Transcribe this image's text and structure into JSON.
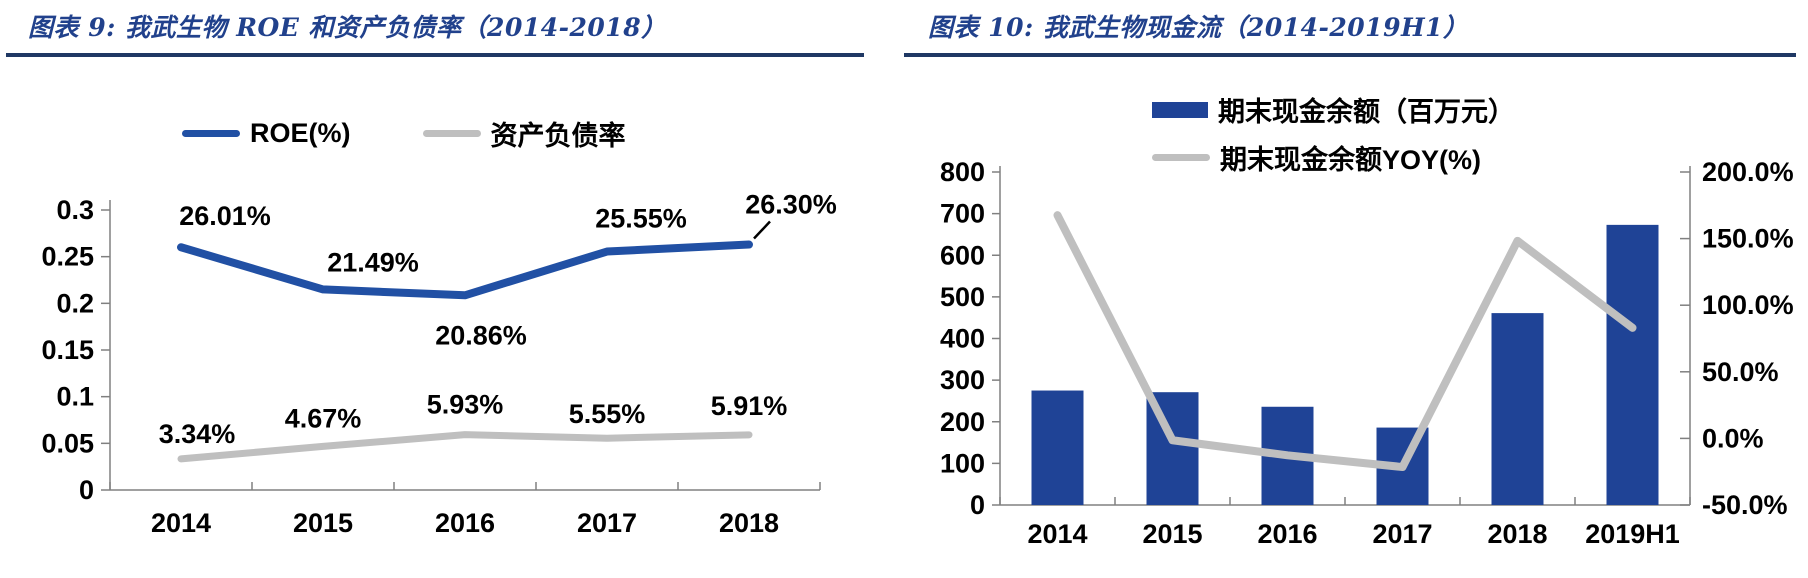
{
  "colors": {
    "title_blue": "#21418C",
    "rule_blue": "#1F3864",
    "bar_blue": "#1F4396",
    "roe_line_blue": "#2150A4",
    "series_gray": "#BFBFBF",
    "axis_gray": "#808080",
    "label_black": "#000000"
  },
  "chart_data": [
    {
      "type": "line",
      "title": "图表 9: 我武生物 ROE 和资产负债率（2014-2018）",
      "categories": [
        "2014",
        "2015",
        "2016",
        "2017",
        "2018"
      ],
      "series": [
        {
          "name": "ROE(%)",
          "color": "#2150A4",
          "values_pct": [
            26.01,
            21.49,
            20.86,
            25.55,
            26.3
          ],
          "labels": [
            "26.01%",
            "21.49%",
            "20.86%",
            "25.55%",
            "26.30%"
          ],
          "label_positions": [
            "above",
            "above",
            "below",
            "above",
            "callout-right"
          ]
        },
        {
          "name": "资产负债率",
          "color": "#BFBFBF",
          "values_pct": [
            3.34,
            4.67,
            5.93,
            5.55,
            5.91
          ],
          "labels": [
            "3.34%",
            "4.67%",
            "5.93%",
            "5.55%",
            "5.91%"
          ],
          "label_positions": [
            "above",
            "above",
            "above",
            "above",
            "above"
          ]
        }
      ],
      "y_axis": {
        "min": 0,
        "max": 0.3,
        "step": 0.05,
        "tick_labels": [
          "0.3",
          "0.25",
          "0.2",
          "0.15",
          "0.1",
          "0.05",
          "0"
        ]
      },
      "grid": false,
      "legend_position": "top"
    },
    {
      "type": "bar+line",
      "title": "图表 10: 我武生物现金流（2014-2019H1）",
      "categories": [
        "2014",
        "2015",
        "2016",
        "2017",
        "2018",
        "2019H1"
      ],
      "bar_series": {
        "name": "期末现金余额（百万元）",
        "color": "#1F4396",
        "axis": "left",
        "values": [
          275,
          271,
          236,
          186,
          461,
          673
        ]
      },
      "line_series": {
        "name": "期末现金余额YOY(%)",
        "color": "#BFBFBF",
        "axis": "right",
        "values_pct": [
          167.6,
          -1.4,
          -12.7,
          -21.5,
          148.3,
          83.0
        ]
      },
      "left_axis": {
        "min": 0,
        "max": 800,
        "step": 100,
        "tick_labels": [
          "800",
          "700",
          "600",
          "500",
          "400",
          "300",
          "200",
          "100",
          "0"
        ]
      },
      "right_axis": {
        "min": -50,
        "max": 200,
        "step": 50,
        "tick_labels": [
          "200.0%",
          "150.0%",
          "100.0%",
          "50.0%",
          "0.0%",
          "-50.0%"
        ]
      },
      "grid": false,
      "legend_position": "top"
    }
  ]
}
